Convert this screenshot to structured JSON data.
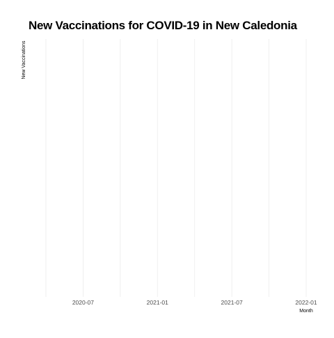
{
  "chart_data": {
    "type": "bar",
    "title": "New Vaccinations for COVID-19 in New Caledonia",
    "xlabel": "Month",
    "ylabel": "New Vaccinations",
    "x_axis_type": "date",
    "x_ticks": [
      "2020-07",
      "2021-01",
      "2021-07",
      "2022-01"
    ],
    "xlim": [
      "2020-04",
      "2022-01"
    ],
    "series": [],
    "grid": {
      "major_x": true,
      "minor_x": true,
      "y": false
    },
    "legend": "none",
    "colors": {
      "grid": "#ebebeb",
      "tick_label": "#4d4d4d",
      "text": "#000000"
    }
  }
}
